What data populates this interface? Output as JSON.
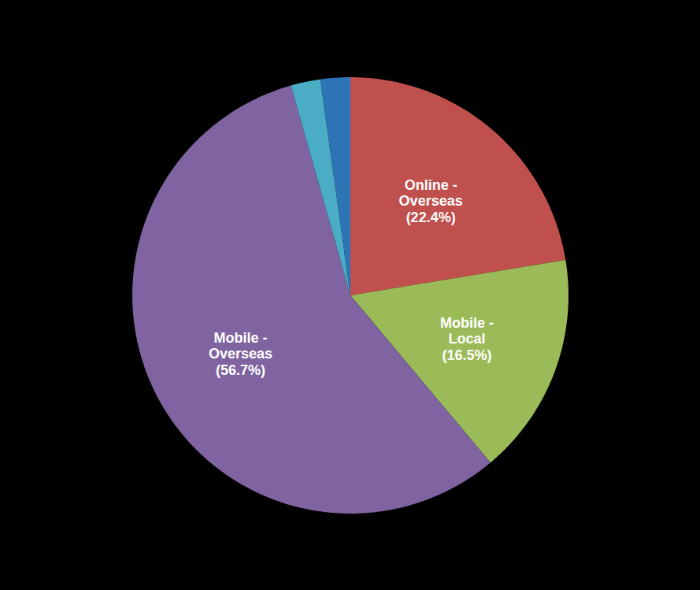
{
  "chart_data": {
    "type": "pie",
    "categories": [
      "Online -\nOverseas\n(22.4%)",
      "Mobile -\nLocal\n(16.5%)",
      "Mobile -\nOverseas\n(56.7%)",
      null,
      null
    ],
    "values": [
      22.4,
      16.5,
      56.7,
      2.2,
      2.2
    ],
    "colors": [
      "#c0504d",
      "#9bbb59",
      "#8064a2",
      "#4bacc6",
      "#2e75b6"
    ]
  }
}
